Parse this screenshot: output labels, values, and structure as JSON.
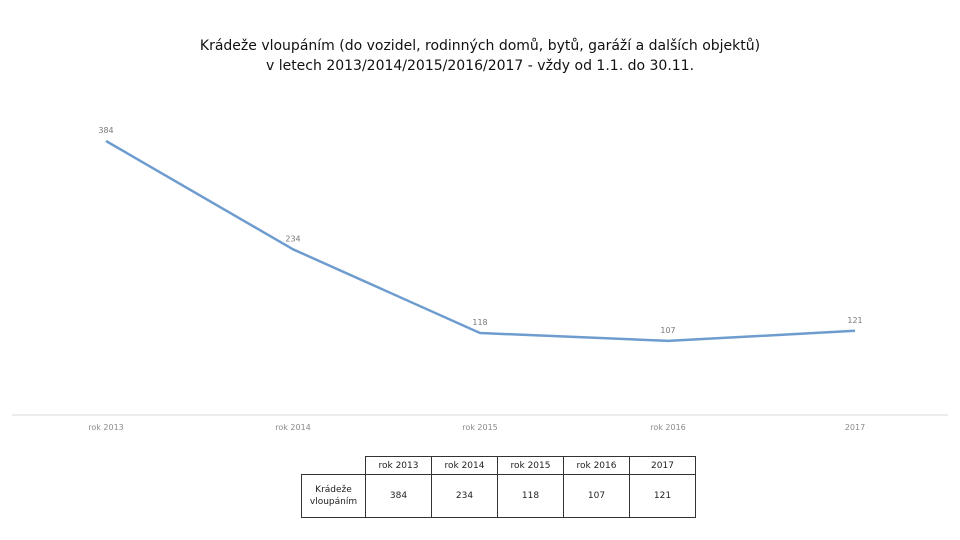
{
  "title": {
    "line1": "Krádeže vloupáním (do vozidel, rodinných domů, bytů, garáží a dalších objektů)",
    "line2": "v letech 2013/2014/2015/2016/2017 - vždy od 1.1. do 30.11."
  },
  "chart_data": {
    "type": "line",
    "categories": [
      "rok 2013",
      "rok 2014",
      "rok 2015",
      "rok 2016",
      "2017"
    ],
    "series": [
      {
        "name": "Krádeže vloupáním",
        "values": [
          384,
          234,
          118,
          107,
          121
        ]
      }
    ],
    "grid": false,
    "line_color": "#6e9ccf",
    "data_table": {
      "headers": [
        "rok 2013",
        "rok 2014",
        "rok 2015",
        "rok 2016",
        "2017"
      ],
      "row_label": "Krádeže vloupáním",
      "values": [
        "384",
        "234",
        "118",
        "107",
        "121"
      ]
    }
  }
}
